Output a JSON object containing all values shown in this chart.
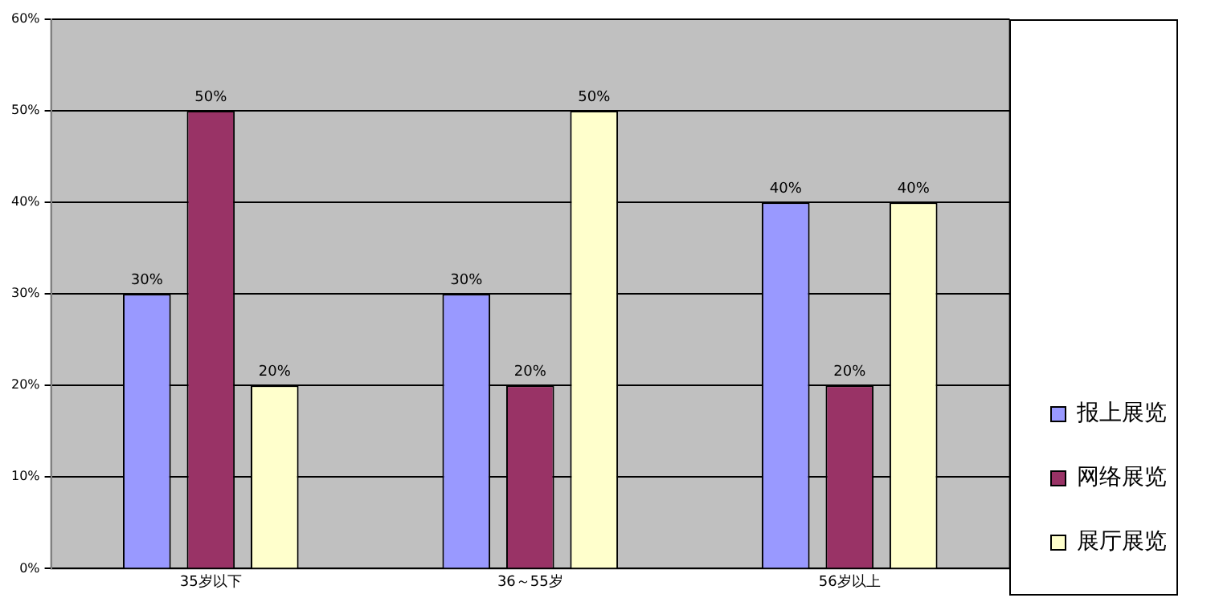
{
  "chart_data": {
    "type": "bar",
    "categories": [
      "35岁以下",
      "36～55岁",
      "56岁以上"
    ],
    "series": [
      {
        "name": "报上展览",
        "color": "#9999ff",
        "values": [
          30,
          30,
          40
        ],
        "value_labels": [
          "30%",
          "30%",
          "40%"
        ]
      },
      {
        "name": "网络展览",
        "color": "#993366",
        "values": [
          50,
          20,
          20
        ],
        "value_labels": [
          "50%",
          "20%",
          "20%"
        ]
      },
      {
        "name": "展厅展览",
        "color": "#ffffcc",
        "values": [
          20,
          50,
          40
        ],
        "value_labels": [
          "20%",
          "50%",
          "40%"
        ]
      }
    ],
    "ylim": [
      0,
      60
    ],
    "yticks": [
      {
        "value": 0,
        "label": "0%"
      },
      {
        "value": 10,
        "label": "10%"
      },
      {
        "value": 20,
        "label": "20%"
      },
      {
        "value": 30,
        "label": "30%"
      },
      {
        "value": 40,
        "label": "40%"
      },
      {
        "value": 50,
        "label": "50%"
      },
      {
        "value": 60,
        "label": "60%"
      }
    ],
    "grid": "y",
    "legend": "right"
  }
}
